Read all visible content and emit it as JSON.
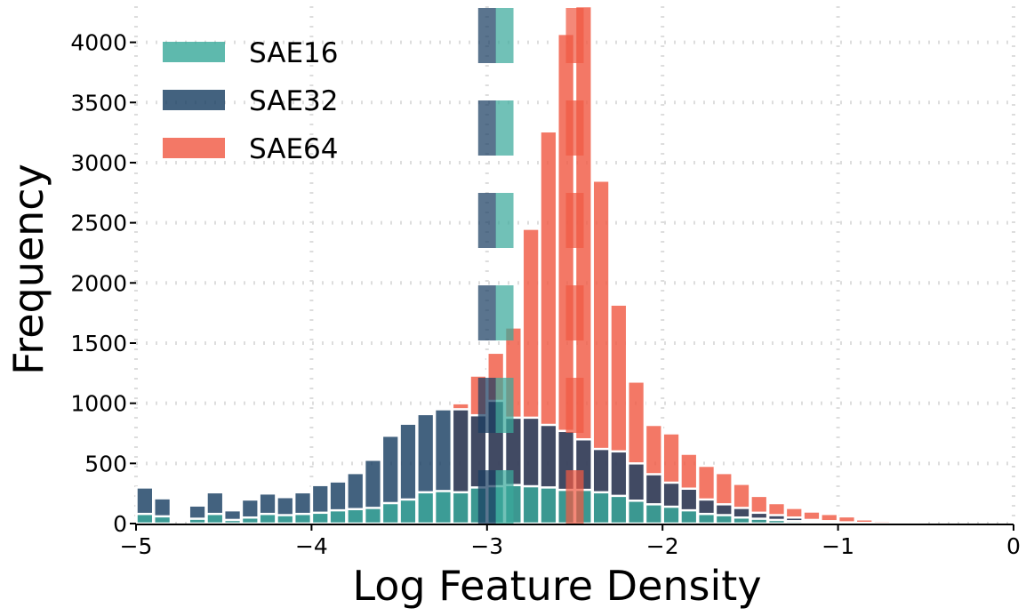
{
  "chart_data": {
    "type": "bar",
    "title": "",
    "xlabel": "Log Feature Density",
    "ylabel": "Frequency",
    "xlim": [
      -5,
      0
    ],
    "ylim": [
      0,
      4300
    ],
    "xticks": [
      "−5",
      "−4",
      "−3",
      "−2",
      "−1",
      "0"
    ],
    "xtick_values": [
      -5,
      -4,
      -3,
      -2,
      -1,
      0
    ],
    "yticks": [
      "0",
      "500",
      "1000",
      "1500",
      "2000",
      "2500",
      "3000",
      "3500",
      "4000"
    ],
    "ytick_values": [
      0,
      500,
      1000,
      1500,
      2000,
      2500,
      3000,
      3500,
      4000
    ],
    "grid": true,
    "legend_position": "top-left",
    "bin_width": 0.1,
    "series": [
      {
        "name": "SAE64",
        "color": "#f05a44",
        "bins": [
          [
            -3.2,
            1000
          ],
          [
            -3.1,
            1230
          ],
          [
            -3.0,
            1420
          ],
          [
            -2.9,
            1630
          ],
          [
            -2.8,
            2450
          ],
          [
            -2.7,
            3260
          ],
          [
            -2.6,
            4070
          ],
          [
            -2.5,
            4400
          ],
          [
            -2.4,
            2850
          ],
          [
            -2.3,
            1820
          ],
          [
            -2.2,
            1180
          ],
          [
            -2.1,
            820
          ],
          [
            -2.0,
            750
          ],
          [
            -1.9,
            580
          ],
          [
            -1.8,
            480
          ],
          [
            -1.7,
            420
          ],
          [
            -1.6,
            330
          ],
          [
            -1.5,
            230
          ],
          [
            -1.4,
            170
          ],
          [
            -1.3,
            130
          ],
          [
            -1.2,
            100
          ],
          [
            -1.1,
            80
          ],
          [
            -1.0,
            60
          ],
          [
            -0.9,
            35
          ],
          [
            -0.8,
            20
          ],
          [
            -0.7,
            10
          ],
          [
            -0.6,
            5
          ]
        ]
      },
      {
        "name": "SAE32",
        "color": "#1a3f63",
        "bins": [
          [
            -5.0,
            300
          ],
          [
            -4.9,
            210
          ],
          [
            -4.7,
            150
          ],
          [
            -4.6,
            260
          ],
          [
            -4.5,
            110
          ],
          [
            -4.4,
            200
          ],
          [
            -4.3,
            250
          ],
          [
            -4.2,
            220
          ],
          [
            -4.1,
            260
          ],
          [
            -4.0,
            320
          ],
          [
            -3.9,
            350
          ],
          [
            -3.8,
            420
          ],
          [
            -3.7,
            530
          ],
          [
            -3.6,
            730
          ],
          [
            -3.5,
            830
          ],
          [
            -3.4,
            910
          ],
          [
            -3.3,
            950
          ],
          [
            -3.2,
            950
          ],
          [
            -3.1,
            900
          ],
          [
            -3.0,
            1020
          ],
          [
            -2.9,
            880
          ],
          [
            -2.8,
            880
          ],
          [
            -2.7,
            820
          ],
          [
            -2.6,
            770
          ],
          [
            -2.5,
            700
          ],
          [
            -2.4,
            620
          ],
          [
            -2.3,
            600
          ],
          [
            -2.2,
            500
          ],
          [
            -2.1,
            410
          ],
          [
            -2.0,
            340
          ],
          [
            -1.9,
            290
          ],
          [
            -1.8,
            200
          ],
          [
            -1.7,
            160
          ],
          [
            -1.6,
            130
          ],
          [
            -1.5,
            90
          ],
          [
            -1.4,
            70
          ],
          [
            -1.3,
            50
          ],
          [
            -1.2,
            30
          ],
          [
            -1.1,
            20
          ],
          [
            -1.0,
            10
          ],
          [
            -0.9,
            5
          ]
        ]
      },
      {
        "name": "SAE16",
        "color": "#3aa99b",
        "bins": [
          [
            -5.0,
            80
          ],
          [
            -4.9,
            60
          ],
          [
            -4.7,
            40
          ],
          [
            -4.6,
            80
          ],
          [
            -4.5,
            30
          ],
          [
            -4.4,
            50
          ],
          [
            -4.3,
            80
          ],
          [
            -4.2,
            70
          ],
          [
            -4.1,
            80
          ],
          [
            -4.0,
            90
          ],
          [
            -3.9,
            110
          ],
          [
            -3.8,
            120
          ],
          [
            -3.7,
            130
          ],
          [
            -3.6,
            170
          ],
          [
            -3.5,
            200
          ],
          [
            -3.4,
            260
          ],
          [
            -3.3,
            270
          ],
          [
            -3.2,
            260
          ],
          [
            -3.1,
            300
          ],
          [
            -3.0,
            310
          ],
          [
            -2.9,
            320
          ],
          [
            -2.8,
            310
          ],
          [
            -2.7,
            300
          ],
          [
            -2.6,
            280
          ],
          [
            -2.5,
            280
          ],
          [
            -2.4,
            260
          ],
          [
            -2.3,
            230
          ],
          [
            -2.2,
            190
          ],
          [
            -2.1,
            160
          ],
          [
            -2.0,
            140
          ],
          [
            -1.9,
            110
          ],
          [
            -1.8,
            80
          ],
          [
            -1.7,
            70
          ],
          [
            -1.6,
            50
          ],
          [
            -1.5,
            40
          ],
          [
            -1.4,
            30
          ],
          [
            -1.3,
            20
          ],
          [
            -1.2,
            15
          ],
          [
            -1.1,
            10
          ],
          [
            -1.0,
            5
          ],
          [
            -0.9,
            5
          ]
        ]
      }
    ],
    "dashed_lines": [
      {
        "x": -3.0,
        "color": "#1a3f63"
      },
      {
        "x": -2.9,
        "color": "#3aa99b"
      },
      {
        "x": -2.5,
        "color": "#f05a44"
      }
    ]
  }
}
